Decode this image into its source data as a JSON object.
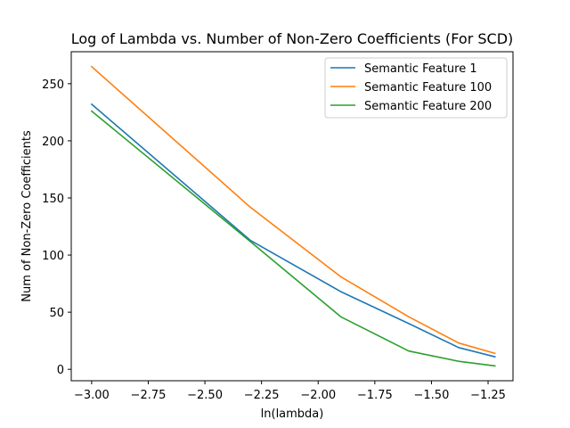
{
  "chart_data": {
    "type": "line",
    "title": "Log of Lambda vs. Number of Non-Zero Coefficients (For SCD)",
    "xlabel": "ln(lambda)",
    "ylabel": "Num of Non-Zero Coefficients",
    "xlim": [
      -3.09,
      -1.14
    ],
    "ylim": [
      -10,
      278
    ],
    "xticks": [
      -3.0,
      -2.75,
      -2.5,
      -2.25,
      -2.0,
      -1.75,
      -1.5,
      -1.25
    ],
    "xtick_labels": [
      "−3.00",
      "−2.75",
      "−2.50",
      "−2.25",
      "−2.00",
      "−1.75",
      "−1.50",
      "−1.25"
    ],
    "yticks": [
      0,
      50,
      100,
      150,
      200,
      250
    ],
    "ytick_labels": [
      "0",
      "50",
      "100",
      "150",
      "200",
      "250"
    ],
    "grid": false,
    "legend_position": "top-right",
    "x": [
      -3.0,
      -2.3,
      -1.9,
      -1.6,
      -1.38,
      -1.22
    ],
    "series": [
      {
        "name": "Semantic Feature 1",
        "color": "#1f77b4",
        "values": [
          232,
          113,
          68,
          40,
          19,
          11
        ]
      },
      {
        "name": "Semantic Feature 100",
        "color": "#ff7f0e",
        "values": [
          265,
          142,
          81,
          46,
          23,
          14
        ]
      },
      {
        "name": "Semantic Feature 200",
        "color": "#2ca02c",
        "values": [
          226,
          112,
          46,
          16,
          7,
          3
        ]
      }
    ]
  }
}
